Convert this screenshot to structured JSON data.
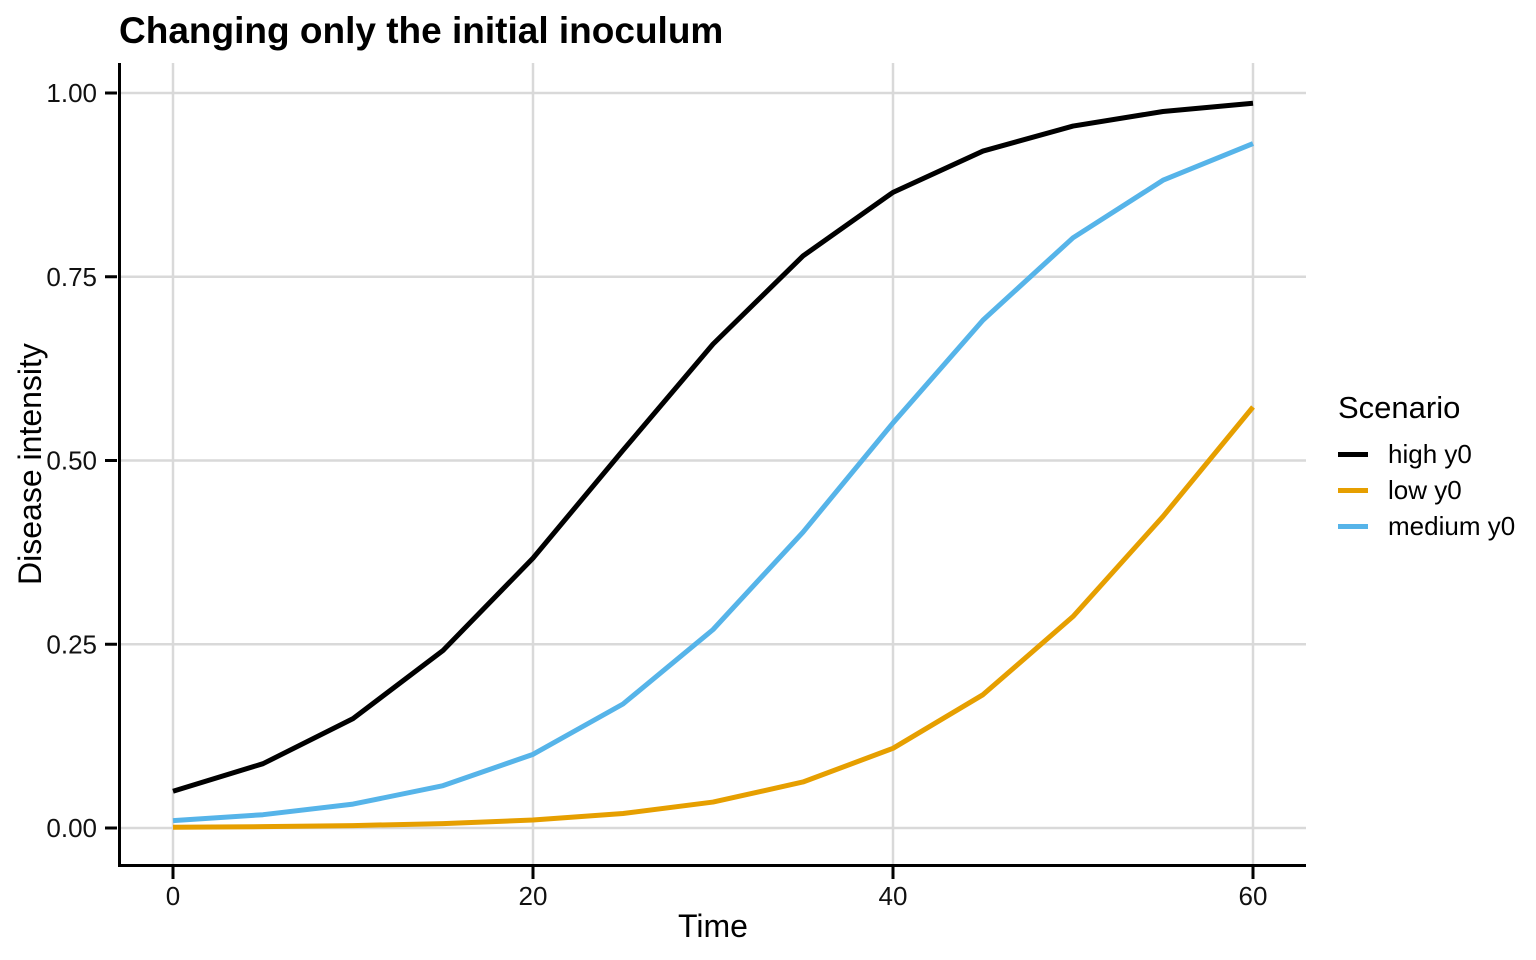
{
  "chart_data": {
    "type": "line",
    "title": "Changing only the initial inoculum",
    "xlabel": "Time",
    "ylabel": "Disease intensity",
    "xlim": [
      0,
      60
    ],
    "ylim": [
      0,
      1
    ],
    "grid": "major",
    "x_ticks": {
      "values": [
        0,
        20,
        40,
        60
      ],
      "labels": [
        "0",
        "20",
        "40",
        "60"
      ]
    },
    "y_ticks": {
      "values": [
        0,
        0.25,
        0.5,
        0.75,
        1
      ],
      "labels": [
        "0.00",
        "0.25",
        "0.50",
        "0.75",
        "1.00"
      ]
    },
    "x": [
      0,
      5,
      10,
      15,
      20,
      25,
      30,
      35,
      40,
      45,
      50,
      55,
      60
    ],
    "series": [
      {
        "name": "high y0",
        "color": "#000000",
        "values": [
          0.05,
          0.0875,
          0.1488,
          0.2415,
          0.3672,
          0.5139,
          0.6583,
          0.7783,
          0.8648,
          0.921,
          0.955,
          0.9748,
          0.986
        ]
      },
      {
        "name": "low y0",
        "color": "#E69F00",
        "values": [
          0.001,
          0.0018,
          0.0033,
          0.006,
          0.0109,
          0.0197,
          0.0353,
          0.0626,
          0.1084,
          0.1814,
          0.2877,
          0.4239,
          0.5728
        ]
      },
      {
        "name": "medium y0",
        "color": "#56B4E9",
        "values": [
          0.01,
          0.0181,
          0.0325,
          0.0576,
          0.1002,
          0.1687,
          0.2699,
          0.4025,
          0.5511,
          0.691,
          0.803,
          0.8813,
          0.9312
        ]
      }
    ],
    "legend": {
      "title": "Scenario",
      "position": "right"
    },
    "colors": {
      "background": "#FFFFFF",
      "grid": "#D9D9D9",
      "axis": "#000000",
      "tick_text": "#111111"
    }
  }
}
